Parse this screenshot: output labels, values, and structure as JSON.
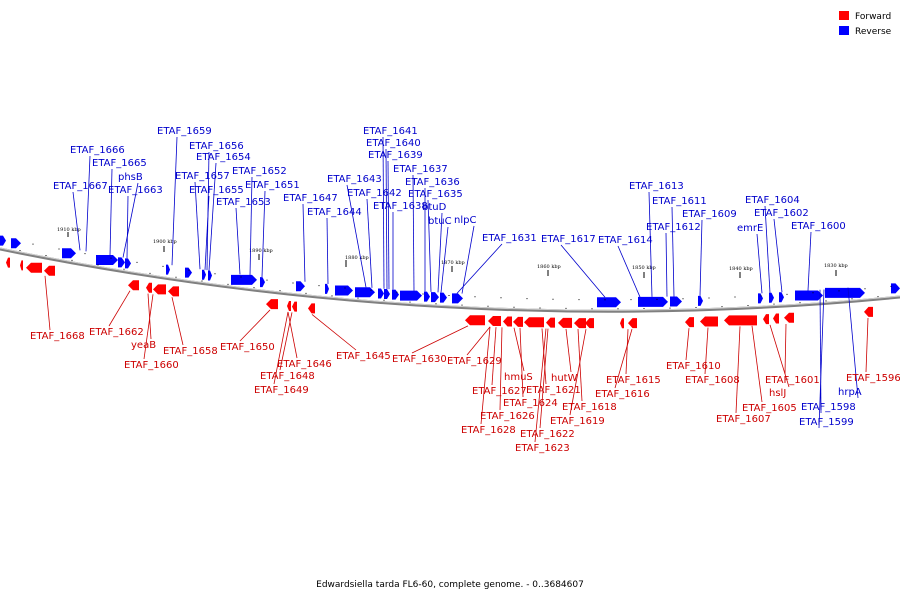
{
  "caption": "Edwardsiella tarda FL6-60, complete genome. - 0..3684607",
  "legend": [
    {
      "label": "Forward",
      "color": "#ff0000"
    },
    {
      "label": "Reverse",
      "color": "#0000ff"
    }
  ],
  "colors": {
    "forward": "#ff0000",
    "reverse": "#0000ff",
    "backbone": "#808080",
    "text_forward": "#cc0000",
    "text_reverse": "#0000cc"
  },
  "ticks": [
    "1910 kbp",
    "1900 kbp",
    "1890 kbp",
    "1880 kbp",
    "1870 kbp",
    "1860 kbp",
    "1850 kbp",
    "1840 kbp",
    "1830 kbp"
  ],
  "reverse_genes": [
    "ETAF_1666",
    "ETAF_1665",
    "phsB",
    "ETAF_1667",
    "ETAF_1663",
    "ETAF_1659",
    "ETAF_1656",
    "ETAF_1654",
    "ETAF_1657",
    "ETAF_1655",
    "ETAF_1653",
    "ETAF_1652",
    "ETAF_1651",
    "ETAF_1647",
    "ETAF_1644",
    "ETAF_1641",
    "ETAF_1640",
    "ETAF_1639",
    "ETAF_1643",
    "ETAF_1642",
    "ETAF_1638",
    "ETAF_1637",
    "ETAF_1636",
    "ETAF_1635",
    "btuD",
    "btuC",
    "nlpC",
    "ETAF_1631",
    "ETAF_1617",
    "ETAF_1614",
    "ETAF_1613",
    "ETAF_1611",
    "ETAF_1612",
    "ETAF_1609",
    "emrE",
    "ETAF_1604",
    "ETAF_1602",
    "ETAF_1600",
    "ETAF_1598",
    "ETAF_1599",
    "hrpA"
  ],
  "forward_genes": [
    "ETAF_1668",
    "ETAF_1662",
    "yeaB",
    "ETAF_1660",
    "ETAF_1658",
    "ETAF_1650",
    "ETAF_1646",
    "ETAF_1648",
    "ETAF_1649",
    "ETAF_1645",
    "ETAF_1630",
    "ETAF_1629",
    "hmuS",
    "ETAF_1627",
    "ETAF_1624",
    "ETAF_1626",
    "ETAF_1628",
    "ETAF_1621",
    "ETAF_1622",
    "ETAF_1623",
    "hutW",
    "ETAF_1618",
    "ETAF_1619",
    "ETAF_1615",
    "ETAF_1616",
    "ETAF_1610",
    "ETAF_1608",
    "ETAF_1607",
    "ETAF_1605",
    "hslJ",
    "ETAF_1601",
    "ETAF_1596"
  ]
}
